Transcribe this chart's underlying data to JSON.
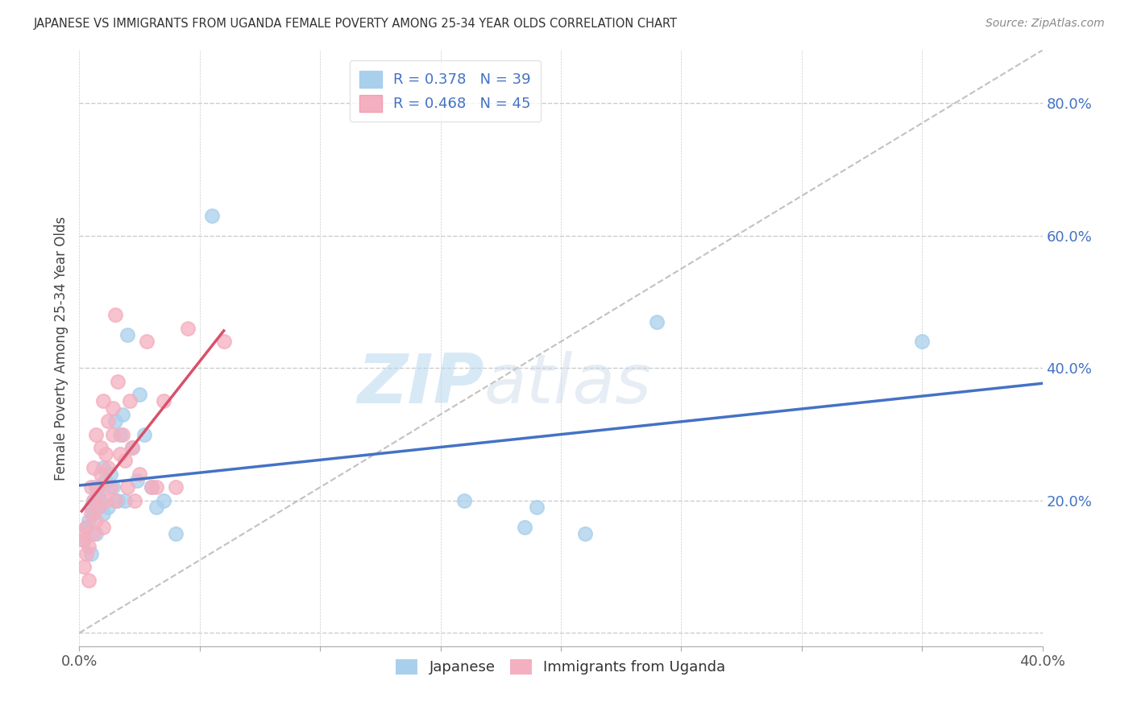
{
  "title": "JAPANESE VS IMMIGRANTS FROM UGANDA FEMALE POVERTY AMONG 25-34 YEAR OLDS CORRELATION CHART",
  "source": "Source: ZipAtlas.com",
  "ylabel": "Female Poverty Among 25-34 Year Olds",
  "xlim": [
    0.0,
    0.4
  ],
  "ylim": [
    -0.02,
    0.88
  ],
  "xticks": [
    0.0,
    0.05,
    0.1,
    0.15,
    0.2,
    0.25,
    0.3,
    0.35,
    0.4
  ],
  "xtick_labels": [
    "0.0%",
    "",
    "",
    "",
    "",
    "",
    "",
    "",
    "40.0%"
  ],
  "yticks": [
    0.0,
    0.2,
    0.4,
    0.6,
    0.8
  ],
  "ytick_labels": [
    "",
    "20.0%",
    "40.0%",
    "60.0%",
    "80.0%"
  ],
  "legend_r1": "R = 0.378",
  "legend_n1": "N = 39",
  "legend_r2": "R = 0.468",
  "legend_n2": "N = 45",
  "legend_label1": "Japanese",
  "legend_label2": "Immigrants from Uganda",
  "color_japanese": "#a8d0ec",
  "color_uganda": "#f4afc0",
  "color_line_japanese": "#4472c4",
  "color_line_uganda": "#d9506a",
  "japanese_x": [
    0.002,
    0.003,
    0.004,
    0.005,
    0.005,
    0.006,
    0.006,
    0.007,
    0.007,
    0.008,
    0.008,
    0.009,
    0.01,
    0.01,
    0.011,
    0.012,
    0.013,
    0.014,
    0.015,
    0.016,
    0.017,
    0.018,
    0.019,
    0.02,
    0.022,
    0.024,
    0.025,
    0.027,
    0.03,
    0.032,
    0.035,
    0.04,
    0.055,
    0.16,
    0.185,
    0.19,
    0.21,
    0.24,
    0.35
  ],
  "japanese_y": [
    0.14,
    0.16,
    0.17,
    0.12,
    0.19,
    0.2,
    0.18,
    0.15,
    0.22,
    0.19,
    0.21,
    0.2,
    0.18,
    0.25,
    0.23,
    0.19,
    0.24,
    0.22,
    0.32,
    0.2,
    0.3,
    0.33,
    0.2,
    0.45,
    0.28,
    0.23,
    0.36,
    0.3,
    0.22,
    0.19,
    0.2,
    0.15,
    0.63,
    0.2,
    0.16,
    0.19,
    0.15,
    0.47,
    0.44
  ],
  "uganda_x": [
    0.001,
    0.002,
    0.002,
    0.003,
    0.003,
    0.004,
    0.004,
    0.005,
    0.005,
    0.006,
    0.006,
    0.006,
    0.007,
    0.007,
    0.008,
    0.008,
    0.009,
    0.009,
    0.01,
    0.01,
    0.011,
    0.011,
    0.012,
    0.012,
    0.013,
    0.014,
    0.014,
    0.015,
    0.015,
    0.016,
    0.017,
    0.018,
    0.019,
    0.02,
    0.021,
    0.022,
    0.023,
    0.025,
    0.028,
    0.03,
    0.032,
    0.035,
    0.04,
    0.045,
    0.06
  ],
  "uganda_y": [
    0.15,
    0.1,
    0.14,
    0.12,
    0.16,
    0.08,
    0.13,
    0.18,
    0.22,
    0.15,
    0.2,
    0.25,
    0.17,
    0.3,
    0.19,
    0.22,
    0.24,
    0.28,
    0.16,
    0.35,
    0.27,
    0.2,
    0.32,
    0.25,
    0.22,
    0.3,
    0.34,
    0.48,
    0.2,
    0.38,
    0.27,
    0.3,
    0.26,
    0.22,
    0.35,
    0.28,
    0.2,
    0.24,
    0.44,
    0.22,
    0.22,
    0.35,
    0.22,
    0.46,
    0.44
  ],
  "background_color": "#ffffff",
  "grid_color": "#cccccc",
  "watermark_zip": "ZIP",
  "watermark_atlas": "atlas"
}
